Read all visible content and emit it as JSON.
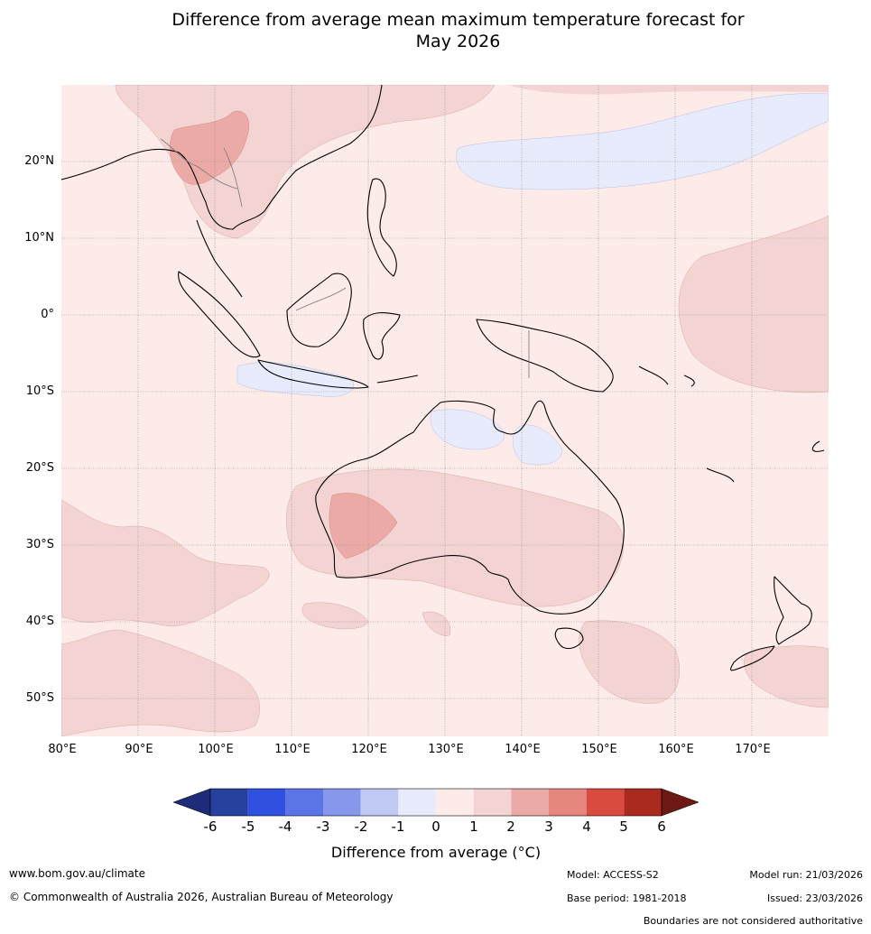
{
  "title": {
    "line1": "Difference from average mean maximum temperature forecast for",
    "line2": "May 2026"
  },
  "map": {
    "lon_range": [
      80,
      180
    ],
    "lat_range": [
      -55,
      30
    ],
    "lat_labels": [
      "20°N",
      "10°N",
      "0°",
      "10°S",
      "20°S",
      "30°S",
      "40°S",
      "50°S"
    ],
    "lat_values": [
      20,
      10,
      0,
      -10,
      -20,
      -30,
      -40,
      -50
    ],
    "lon_labels": [
      "80°E",
      "90°E",
      "100°E",
      "110°E",
      "120°E",
      "130°E",
      "140°E",
      "150°E",
      "160°E",
      "170°E"
    ],
    "lon_values": [
      80,
      90,
      100,
      110,
      120,
      130,
      140,
      150,
      160,
      170
    ],
    "background_category": "0 to 1",
    "regions": [
      {
        "name": "mainland-se-asia-anomaly",
        "category": "1 to 2"
      },
      {
        "name": "indochina-warm-core",
        "category": "2 to 3"
      },
      {
        "name": "north-pacific-cool-band",
        "category": "-1 to 0"
      },
      {
        "name": "equatorial-pacific-warm",
        "category": "1 to 2"
      },
      {
        "name": "central-australia-warm",
        "category": "1 to 2"
      },
      {
        "name": "western-australia-warm-core",
        "category": "2 to 3"
      },
      {
        "name": "gulf-of-carpentaria-cool",
        "category": "-1 to 0"
      },
      {
        "name": "java-sea-cool",
        "category": "-1 to 0"
      },
      {
        "name": "southern-indian-ocean-warm",
        "category": "1 to 2"
      },
      {
        "name": "tasman-sea-warm",
        "category": "1 to 2"
      }
    ]
  },
  "colorbar": {
    "ticks": [
      "-6",
      "-5",
      "-4",
      "-3",
      "-2",
      "-1",
      "0",
      "1",
      "2",
      "3",
      "4",
      "5",
      "6"
    ],
    "colors": [
      "#26409e",
      "#3050e0",
      "#5b74e6",
      "#8798ec",
      "#c0c8f4",
      "#e8ebfb",
      "#fcebe9",
      "#f4d4d2",
      "#ecaaa6",
      "#e6877f",
      "#da4b3f",
      "#aa2a20"
    ],
    "low_extend_color": "#1e2b78",
    "high_extend_color": "#6e1a14",
    "label": "Difference from average (°C)"
  },
  "footer": {
    "website": "www.bom.gov.au/climate",
    "copyright": "© Commonwealth of Australia 2026, Australian Bureau of Meteorology",
    "model": "Model: ACCESS-S2",
    "model_run": "Model run: 21/03/2026",
    "base_period": "Base period: 1981-2018",
    "issued": "Issued: 23/03/2026",
    "disclaimer": "Boundaries are not considered authoritative"
  }
}
